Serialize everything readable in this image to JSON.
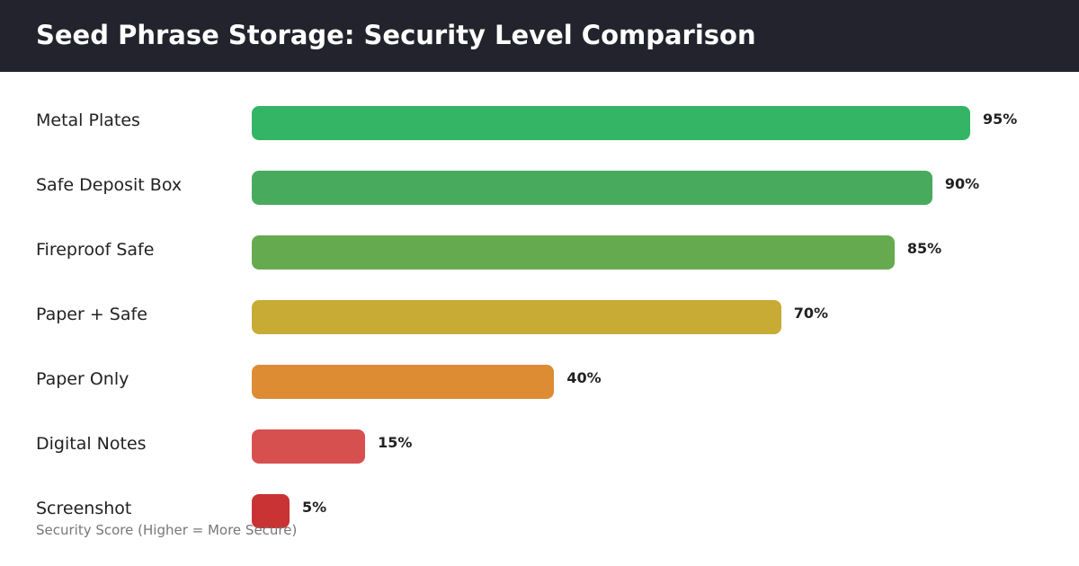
{
  "chart_data": {
    "type": "bar",
    "orientation": "horizontal",
    "title": "Seed Phrase Storage: Security Level Comparison",
    "xlabel": "Security Score (Higher = More Secure)",
    "xlim": [
      0,
      100
    ],
    "grid": false,
    "categories": [
      "Metal Plates",
      "Safe Deposit Box",
      "Fireproof Safe",
      "Paper + Safe",
      "Paper Only",
      "Digital Notes",
      "Screenshot"
    ],
    "values": [
      95,
      90,
      85,
      70,
      40,
      15,
      5
    ],
    "value_labels": [
      "95%",
      "90%",
      "85%",
      "70%",
      "40%",
      "15%",
      "5%"
    ],
    "colors": [
      "#33b565",
      "#47aa5c",
      "#66aa50",
      "#c8ab34",
      "#dd8c34",
      "#d75050",
      "#c93333"
    ]
  }
}
